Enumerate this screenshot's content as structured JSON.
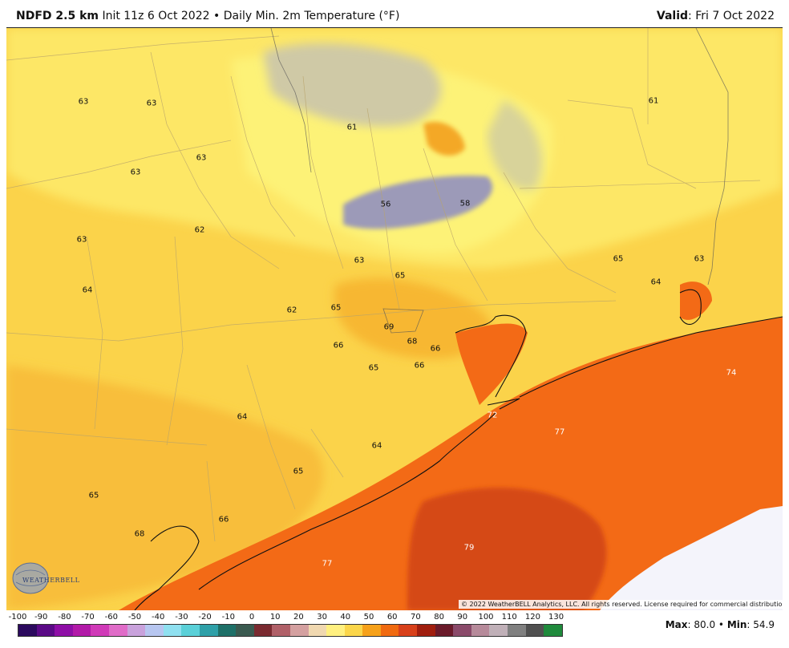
{
  "header": {
    "model": "NDFD 2.5 km",
    "init": "Init 11z 6 Oct 2022",
    "sep": "•",
    "product": "Daily Min. 2m Temperature (°F)",
    "valid_label": "Valid",
    "valid_value": "Fri 7 Oct 2022"
  },
  "map": {
    "temperature_labels": [
      {
        "text": "63"
      },
      {
        "text": "63"
      },
      {
        "text": "61"
      },
      {
        "text": "61"
      },
      {
        "text": "63"
      },
      {
        "text": "63"
      },
      {
        "text": "56"
      },
      {
        "text": "58"
      },
      {
        "text": "62"
      },
      {
        "text": "63"
      },
      {
        "text": "63"
      },
      {
        "text": "65"
      },
      {
        "text": "63"
      },
      {
        "text": "64"
      },
      {
        "text": "65"
      },
      {
        "text": "64"
      },
      {
        "text": "62"
      },
      {
        "text": "65"
      },
      {
        "text": "69"
      },
      {
        "text": "68"
      },
      {
        "text": "66"
      },
      {
        "text": "66"
      },
      {
        "text": "66"
      },
      {
        "text": "65"
      },
      {
        "text": "74"
      },
      {
        "text": "72"
      },
      {
        "text": "64"
      },
      {
        "text": "77"
      },
      {
        "text": "64"
      },
      {
        "text": "65"
      },
      {
        "text": "65"
      },
      {
        "text": "66"
      },
      {
        "text": "68"
      },
      {
        "text": "79"
      },
      {
        "text": "77"
      }
    ],
    "copyright": "© 2022 WeatherBELL Analytics, LLC. All rights reserved. License required for commercial distribution.",
    "logo_text": "WEATHERBELL"
  },
  "scale": {
    "ticks": [
      "-100",
      "-90",
      "-80",
      "-70",
      "-60",
      "-50",
      "-40",
      "-30",
      "-20",
      "-10",
      "0",
      "10",
      "20",
      "30",
      "40",
      "50",
      "60",
      "70",
      "80",
      "90",
      "100",
      "110",
      "120",
      "130"
    ],
    "colors": [
      "#2b0a5e",
      "#5a0a86",
      "#8e0ea6",
      "#b21aa8",
      "#d03ab8",
      "#e06cc8",
      "#c9a2dc",
      "#b7c6f0",
      "#8fe0f0",
      "#5ad0d8",
      "#2ea0a8",
      "#1e7068",
      "#3a5a50",
      "#7a2a30",
      "#b06068",
      "#d4a0a0",
      "#f0d8b0",
      "#fff080",
      "#fbd64a",
      "#f6a11a",
      "#f06a10",
      "#d8401a",
      "#a01e0e",
      "#6a1a2a",
      "#8a4a6a",
      "#b68a9a",
      "#c0b0b8",
      "#808080",
      "#505050",
      "#1f8a3c"
    ],
    "max_label": "Max",
    "max_value": "80.0",
    "min_label": "Min",
    "min_value": "54.9",
    "sep": "•"
  }
}
